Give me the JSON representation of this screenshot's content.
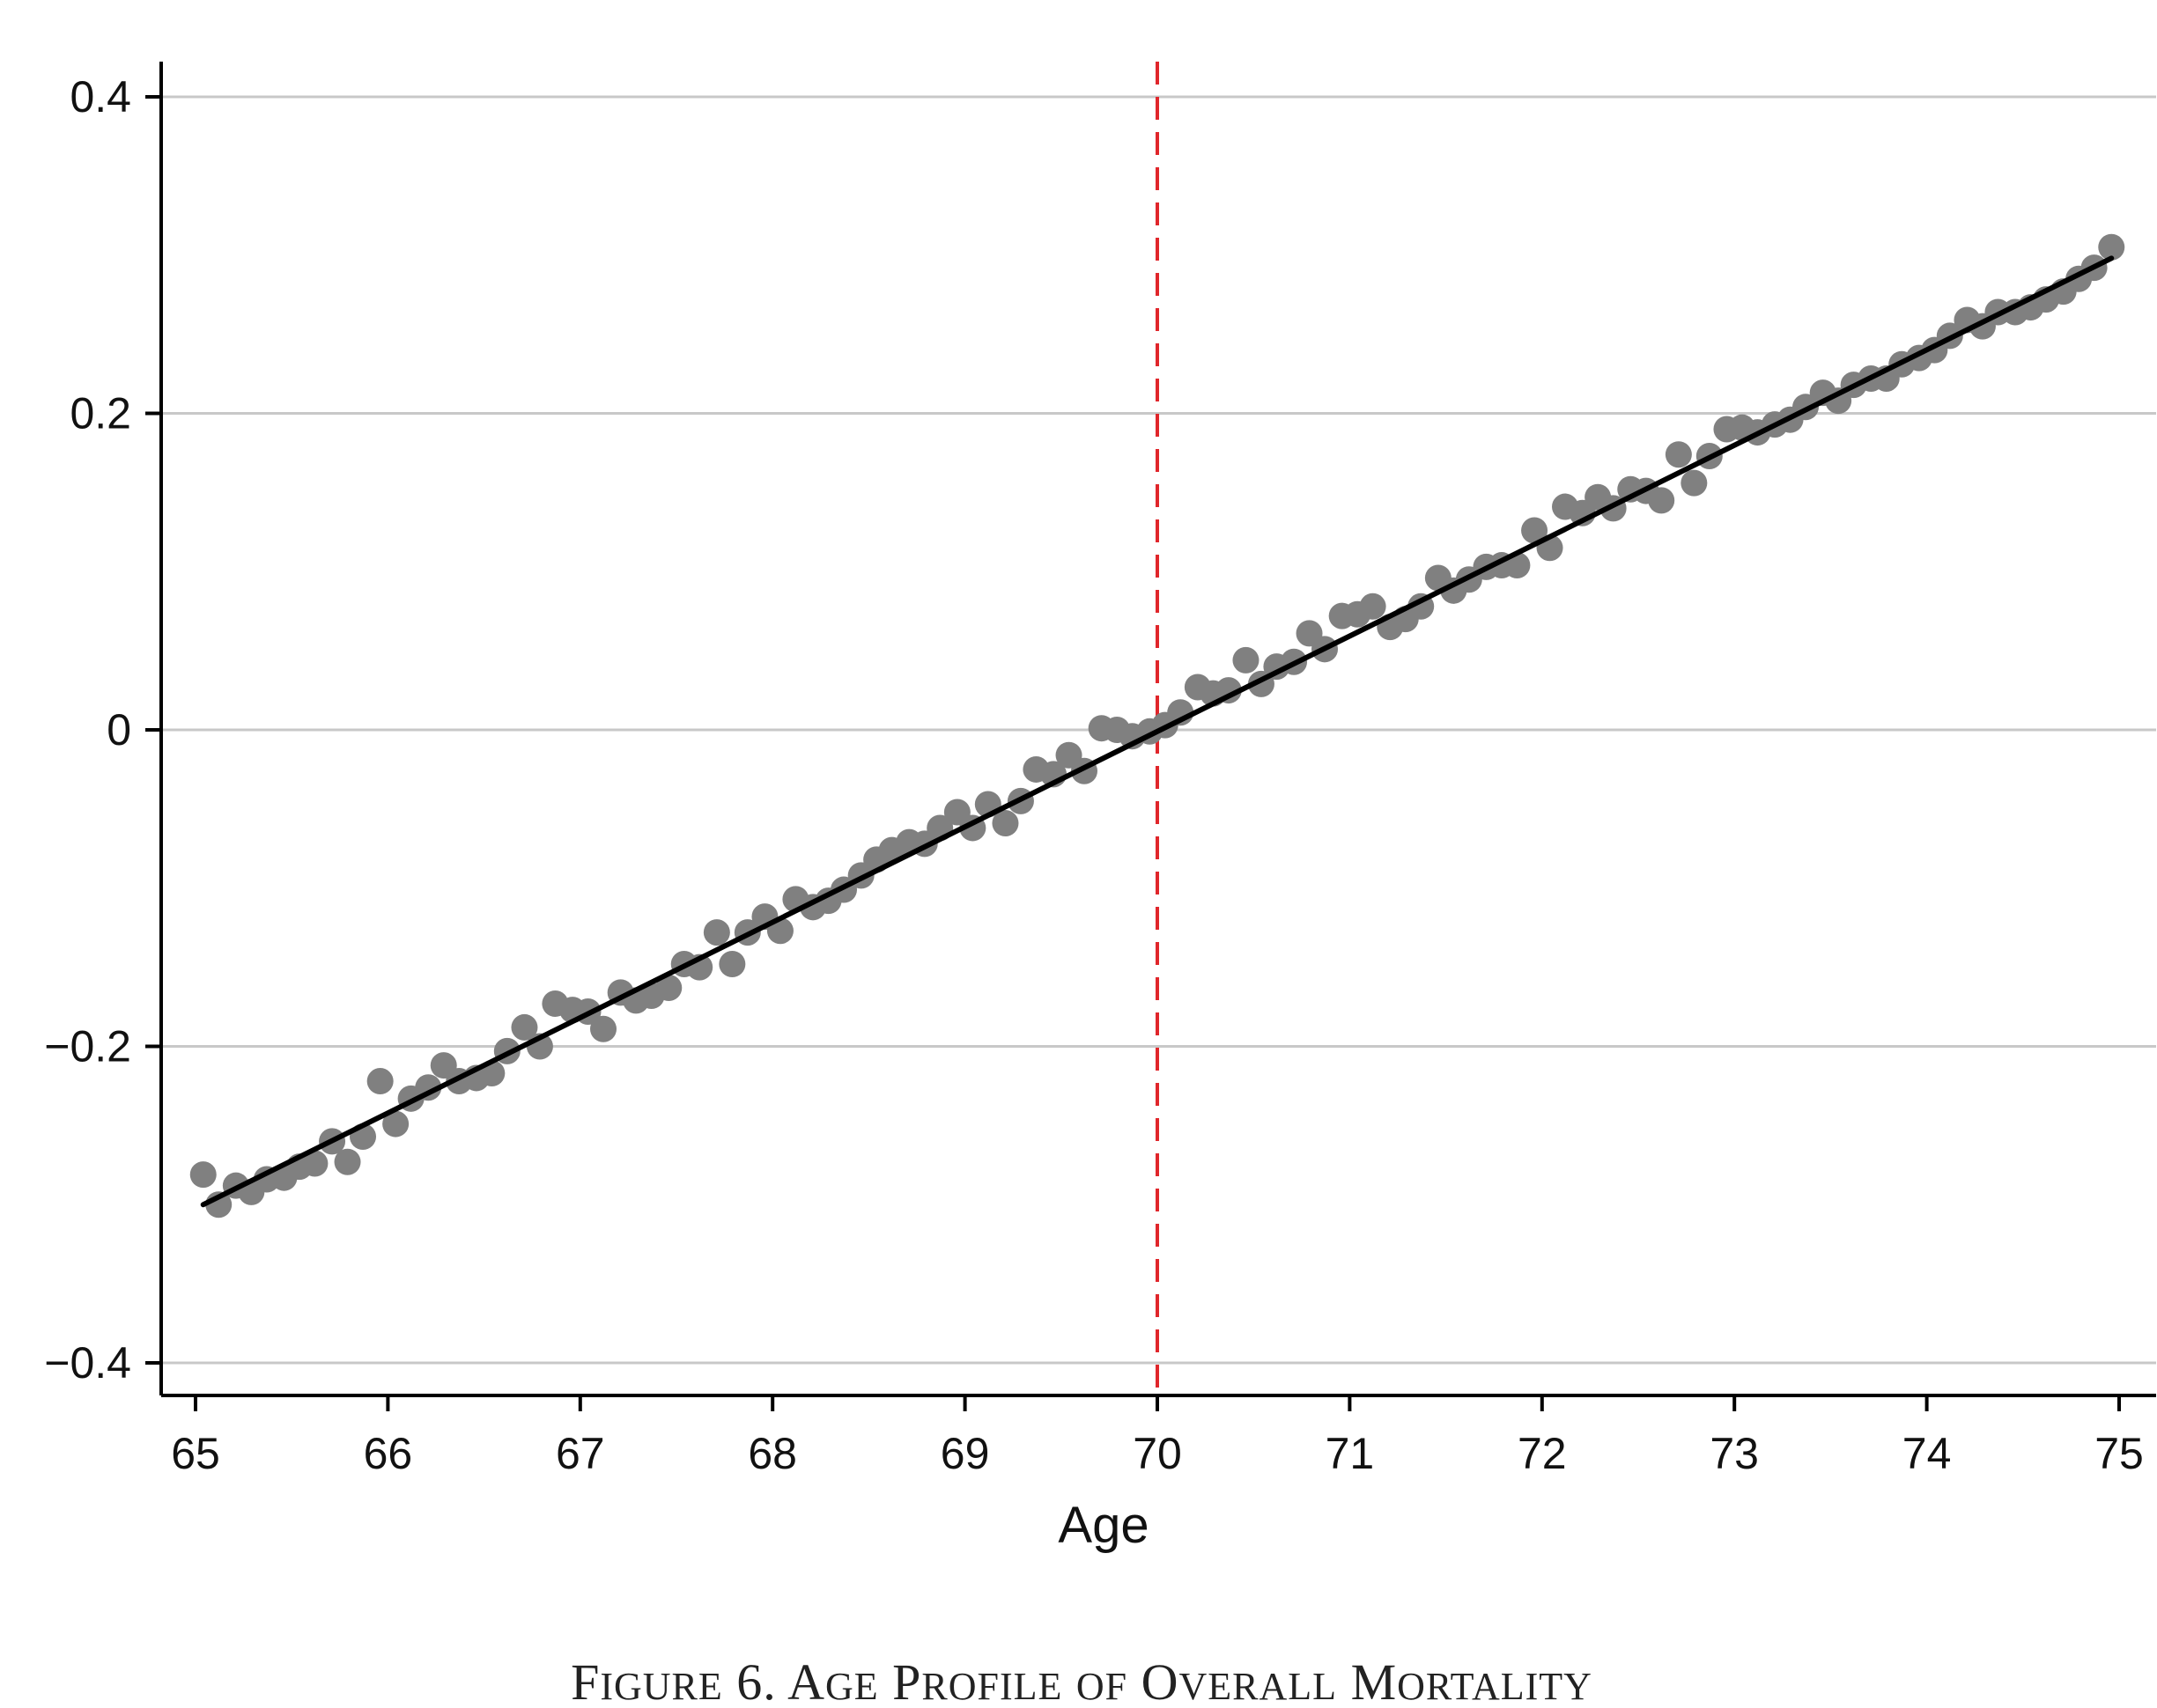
{
  "caption": {
    "prefix": "Figure 6. ",
    "words": [
      "Age",
      "Profile",
      "of",
      "Overall",
      "Mortality"
    ]
  },
  "chart_data": {
    "type": "scatter",
    "title": "",
    "xlabel": "Age",
    "ylabel": "",
    "xlim": [
      65,
      75
    ],
    "ylim": [
      -0.4,
      0.4
    ],
    "x_ticks": [
      65,
      66,
      67,
      68,
      69,
      70,
      71,
      72,
      73,
      74,
      75
    ],
    "x_tick_labels": [
      "65",
      "66",
      "67",
      "68",
      "69",
      "70",
      "71",
      "72",
      "73",
      "74",
      "75"
    ],
    "y_ticks": [
      -0.4,
      -0.2,
      0,
      0.2,
      0.4
    ],
    "y_tick_labels": [
      "−0.4",
      "−0.2",
      "0",
      "0.2",
      "0.4"
    ],
    "grid": "horizontal",
    "cutoff": {
      "x": 70,
      "color": "#e0262b",
      "style": "dashed"
    },
    "fit_line": {
      "x": [
        65.04,
        74.96
      ],
      "y": [
        -0.3,
        0.298
      ],
      "color": "#000000"
    },
    "point_color": "#808080",
    "points": {
      "x": [
        65.04,
        65.12,
        65.21,
        65.29,
        65.37,
        65.46,
        65.54,
        65.62,
        65.71,
        65.79,
        65.87,
        65.96,
        66.04,
        66.12,
        66.21,
        66.29,
        66.37,
        66.46,
        66.54,
        66.62,
        66.71,
        66.79,
        66.87,
        66.96,
        67.04,
        67.12,
        67.21,
        67.29,
        67.37,
        67.46,
        67.54,
        67.62,
        67.71,
        67.79,
        67.87,
        67.96,
        68.04,
        68.12,
        68.21,
        68.29,
        68.37,
        68.46,
        68.54,
        68.62,
        68.71,
        68.79,
        68.87,
        68.96,
        69.04,
        69.12,
        69.21,
        69.29,
        69.37,
        69.46,
        69.54,
        69.62,
        69.71,
        69.79,
        69.87,
        69.96,
        70.04,
        70.12,
        70.21,
        70.29,
        70.37,
        70.46,
        70.54,
        70.62,
        70.71,
        70.79,
        70.87,
        70.96,
        71.04,
        71.12,
        71.21,
        71.29,
        71.37,
        71.46,
        71.54,
        71.62,
        71.71,
        71.79,
        71.87,
        71.96,
        72.04,
        72.12,
        72.21,
        72.29,
        72.37,
        72.46,
        72.54,
        72.62,
        72.71,
        72.79,
        72.87,
        72.96,
        73.04,
        73.12,
        73.21,
        73.29,
        73.37,
        73.46,
        73.54,
        73.62,
        73.71,
        73.79,
        73.87,
        73.96,
        74.04,
        74.12,
        74.21,
        74.29,
        74.37,
        74.46,
        74.54,
        74.62,
        74.71,
        74.79,
        74.87,
        74.96
      ],
      "y": [
        -0.281,
        -0.3,
        -0.288,
        -0.292,
        -0.284,
        -0.283,
        -0.276,
        -0.274,
        -0.26,
        -0.273,
        -0.257,
        -0.222,
        -0.249,
        -0.233,
        -0.226,
        -0.212,
        -0.222,
        -0.22,
        -0.217,
        -0.203,
        -0.188,
        -0.2,
        -0.173,
        -0.177,
        -0.178,
        -0.189,
        -0.166,
        -0.171,
        -0.168,
        -0.163,
        -0.148,
        -0.15,
        -0.128,
        -0.148,
        -0.128,
        -0.118,
        -0.127,
        -0.107,
        -0.112,
        -0.108,
        -0.101,
        -0.092,
        -0.082,
        -0.076,
        -0.071,
        -0.072,
        -0.062,
        -0.052,
        -0.062,
        -0.047,
        -0.059,
        -0.045,
        -0.025,
        -0.028,
        -0.016,
        -0.026,
        0.001,
        0.0,
        -0.004,
        -0.001,
        0.003,
        0.011,
        0.027,
        0.023,
        0.025,
        0.044,
        0.029,
        0.04,
        0.043,
        0.061,
        0.051,
        0.072,
        0.073,
        0.078,
        0.065,
        0.07,
        0.078,
        0.096,
        0.088,
        0.095,
        0.103,
        0.104,
        0.104,
        0.126,
        0.115,
        0.141,
        0.137,
        0.147,
        0.14,
        0.152,
        0.151,
        0.145,
        0.174,
        0.156,
        0.173,
        0.19,
        0.191,
        0.188,
        0.193,
        0.196,
        0.204,
        0.213,
        0.208,
        0.218,
        0.222,
        0.222,
        0.231,
        0.235,
        0.24,
        0.249,
        0.259,
        0.255,
        0.264,
        0.264,
        0.267,
        0.272,
        0.277,
        0.285,
        0.292,
        0.305
      ]
    }
  }
}
